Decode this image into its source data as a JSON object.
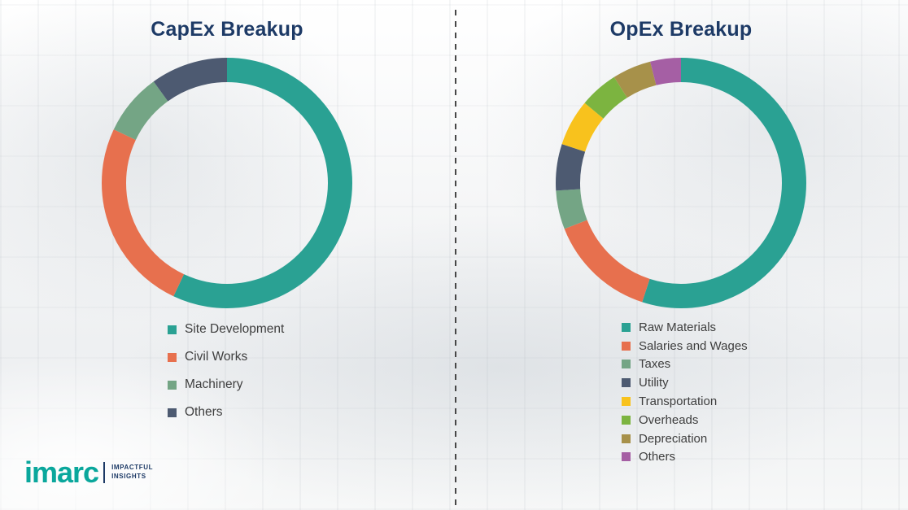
{
  "brand": {
    "teal": "#0aa79c",
    "navy": "#1d3a66",
    "legend_text": "#3e3e3e"
  },
  "logo": {
    "brand": "imarc",
    "tagline_line1": "IMPACTFUL",
    "tagline_line2": "INSIGHTS"
  },
  "chart_data": [
    {
      "type": "pie",
      "variant": "donut",
      "title": "CapEx Breakup",
      "labels": [
        "Site Development",
        "Civil Works",
        "Machinery",
        "Others"
      ],
      "values": [
        57,
        25,
        8,
        10
      ],
      "colors": [
        "#2aa193",
        "#e7704e",
        "#74a585",
        "#4d5a71"
      ],
      "start_angle_deg": 0,
      "direction": "clockwise",
      "legend_position": "bottom-left"
    },
    {
      "type": "pie",
      "variant": "donut",
      "title": "OpEx Breakup",
      "labels": [
        "Raw Materials",
        "Salaries and Wages",
        "Taxes",
        "Utility",
        "Transportation",
        "Overheads",
        "Depreciation",
        "Others"
      ],
      "values": [
        55,
        14,
        5,
        6,
        6,
        5,
        5,
        4
      ],
      "colors": [
        "#2aa193",
        "#e7704e",
        "#74a585",
        "#4d5a71",
        "#f8c21d",
        "#7cb440",
        "#a7914a",
        "#a55fa4"
      ],
      "start_angle_deg": 0,
      "direction": "clockwise",
      "legend_position": "bottom-left"
    }
  ]
}
